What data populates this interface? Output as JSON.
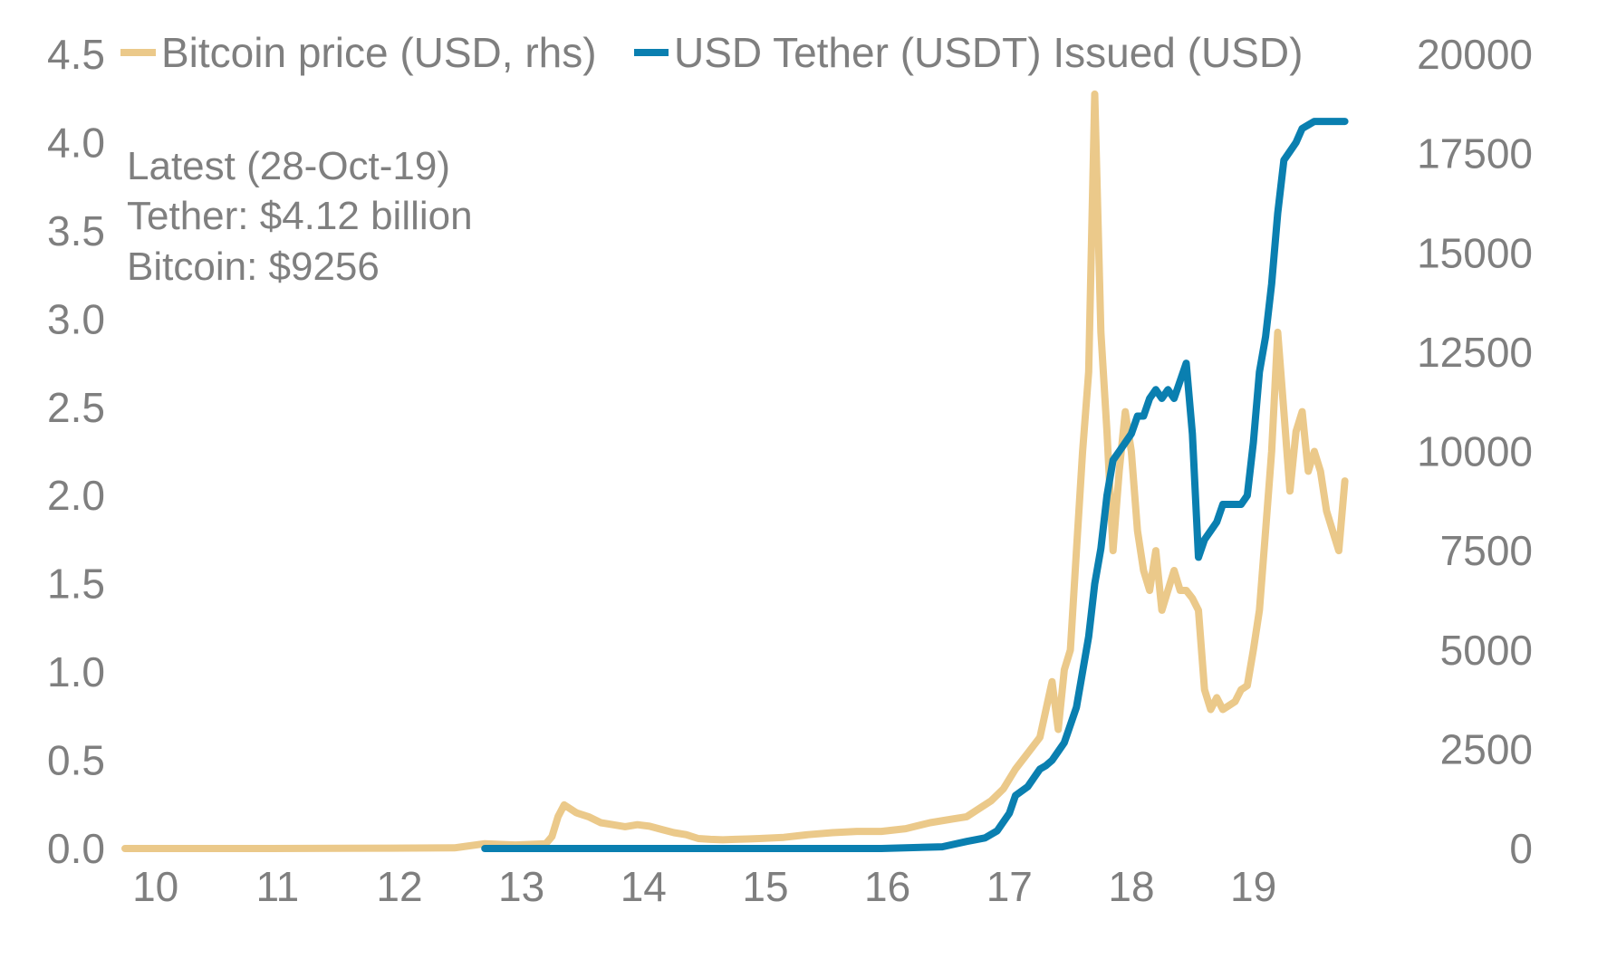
{
  "chart_data": {
    "type": "line",
    "x_tick_labels": [
      "10",
      "11",
      "12",
      "13",
      "14",
      "15",
      "16",
      "17",
      "18",
      "19"
    ],
    "x_ticks": [
      2010,
      2011,
      2012,
      2013,
      2014,
      2015,
      2016,
      2017,
      2018,
      2019
    ],
    "xlim": [
      2009.8,
      2020.1
    ],
    "y_left": {
      "ticks": [
        "0.0",
        "0.5",
        "1.0",
        "1.5",
        "2.0",
        "2.5",
        "3.0",
        "3.5",
        "4.0",
        "4.5"
      ],
      "ylim": [
        0,
        4.5
      ]
    },
    "y_right": {
      "ticks": [
        "0",
        "2500",
        "5000",
        "7500",
        "10000",
        "12500",
        "15000",
        "17500",
        "20000"
      ],
      "ylim": [
        0,
        20000
      ]
    },
    "legend": [
      {
        "label": "Bitcoin price (USD, rhs)",
        "color": "#ebc98a"
      },
      {
        "label": "USD Tether (USDT) Issued (USD)",
        "color": "#0a7fb0"
      }
    ],
    "annotation": [
      "Latest (28-Oct-19)",
      "Tether: $4.12 billion",
      "Bitcoin: $9256"
    ],
    "series": [
      {
        "name": "USD Tether (USDT) Issued (USD)",
        "axis": "left",
        "color": "#0a7fb0",
        "x": [
          2012.75,
          2013.0,
          2014.0,
          2015.0,
          2016.0,
          2016.5,
          2016.7,
          2016.85,
          2016.95,
          2017.05,
          2017.1,
          2017.2,
          2017.3,
          2017.35,
          2017.4,
          2017.45,
          2017.5,
          2017.6,
          2017.7,
          2017.75,
          2017.8,
          2017.85,
          2017.9,
          2017.95,
          2018.0,
          2018.05,
          2018.1,
          2018.15,
          2018.2,
          2018.25,
          2018.3,
          2018.35,
          2018.4,
          2018.45,
          2018.5,
          2018.55,
          2018.6,
          2018.65,
          2018.7,
          2018.75,
          2018.8,
          2018.85,
          2018.9,
          2018.95,
          2019.0,
          2019.05,
          2019.1,
          2019.15,
          2019.2,
          2019.25,
          2019.3,
          2019.35,
          2019.4,
          2019.45,
          2019.5,
          2019.55,
          2019.6,
          2019.65,
          2019.7,
          2019.75,
          2019.8
        ],
        "y": [
          0.0,
          0.0,
          0.0,
          0.0,
          0.0,
          0.01,
          0.04,
          0.06,
          0.1,
          0.2,
          0.3,
          0.35,
          0.45,
          0.47,
          0.5,
          0.55,
          0.6,
          0.8,
          1.2,
          1.5,
          1.7,
          2.0,
          2.2,
          2.25,
          2.3,
          2.35,
          2.45,
          2.45,
          2.55,
          2.6,
          2.55,
          2.6,
          2.55,
          2.65,
          2.75,
          2.35,
          1.65,
          1.75,
          1.8,
          1.85,
          1.95,
          1.95,
          1.95,
          1.95,
          2.0,
          2.3,
          2.7,
          2.9,
          3.2,
          3.6,
          3.9,
          3.95,
          4.0,
          4.08,
          4.1,
          4.12,
          4.12,
          4.12,
          4.12,
          4.12,
          4.12
        ]
      },
      {
        "name": "Bitcoin price (USD, rhs)",
        "axis": "right",
        "color": "#ebc98a",
        "x": [
          2009.8,
          2010.0,
          2011.0,
          2012.0,
          2012.5,
          2012.75,
          2013.0,
          2013.25,
          2013.3,
          2013.35,
          2013.4,
          2013.5,
          2013.6,
          2013.7,
          2013.8,
          2013.9,
          2014.0,
          2014.1,
          2014.2,
          2014.3,
          2014.4,
          2014.5,
          2014.6,
          2014.7,
          2014.8,
          2014.9,
          2015.0,
          2015.2,
          2015.4,
          2015.6,
          2015.8,
          2016.0,
          2016.2,
          2016.4,
          2016.6,
          2016.7,
          2016.8,
          2016.9,
          2017.0,
          2017.1,
          2017.2,
          2017.3,
          2017.35,
          2017.4,
          2017.45,
          2017.5,
          2017.55,
          2017.6,
          2017.65,
          2017.7,
          2017.75,
          2017.8,
          2017.85,
          2017.9,
          2017.95,
          2018.0,
          2018.05,
          2018.1,
          2018.15,
          2018.2,
          2018.25,
          2018.3,
          2018.35,
          2018.4,
          2018.45,
          2018.5,
          2018.55,
          2018.6,
          2018.65,
          2018.7,
          2018.75,
          2018.8,
          2018.85,
          2018.9,
          2018.95,
          2019.0,
          2019.05,
          2019.1,
          2019.15,
          2019.2,
          2019.25,
          2019.3,
          2019.35,
          2019.4,
          2019.45,
          2019.5,
          2019.55,
          2019.6,
          2019.65,
          2019.7,
          2019.75,
          2019.8
        ],
        "y": [
          0,
          0,
          0,
          10,
          15,
          120,
          90,
          120,
          300,
          800,
          1100,
          900,
          800,
          650,
          600,
          550,
          600,
          560,
          480,
          400,
          350,
          250,
          230,
          220,
          230,
          240,
          250,
          280,
          350,
          400,
          430,
          430,
          500,
          650,
          750,
          800,
          1000,
          1200,
          1500,
          2000,
          2400,
          2800,
          3500,
          4200,
          3000,
          4500,
          5000,
          7500,
          10000,
          12000,
          19000,
          13000,
          10500,
          7500,
          9500,
          11000,
          10000,
          8000,
          7000,
          6500,
          7500,
          6000,
          6500,
          7000,
          6500,
          6500,
          6300,
          6000,
          4000,
          3500,
          3800,
          3500,
          3600,
          3700,
          4000,
          4100,
          5000,
          6000,
          8000,
          10000,
          13000,
          11000,
          9000,
          10500,
          11000,
          9500,
          10000,
          9500,
          8500,
          8000,
          7500,
          9256
        ]
      }
    ]
  }
}
